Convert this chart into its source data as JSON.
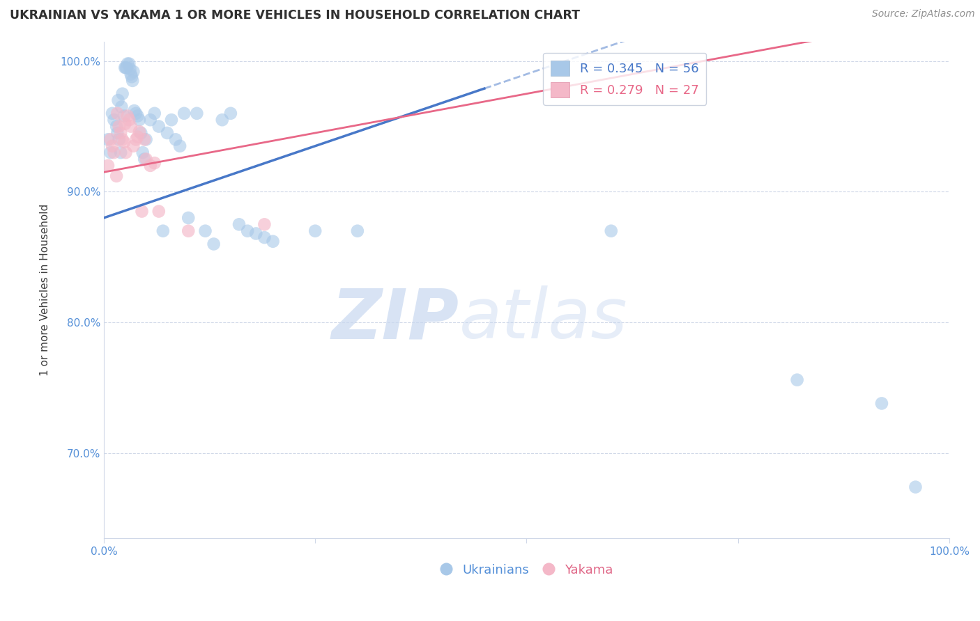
{
  "title": "UKRAINIAN VS YAKAMA 1 OR MORE VEHICLES IN HOUSEHOLD CORRELATION CHART",
  "source": "Source: ZipAtlas.com",
  "ylabel": "1 or more Vehicles in Household",
  "xlim": [
    0.0,
    1.0
  ],
  "ylim": [
    0.635,
    1.015
  ],
  "x_ticks": [
    0.0,
    0.25,
    0.5,
    0.75,
    1.0
  ],
  "x_tick_labels": [
    "0.0%",
    "",
    "",
    "",
    "100.0%"
  ],
  "y_ticks": [
    0.7,
    0.8,
    0.9,
    1.0
  ],
  "y_tick_labels": [
    "70.0%",
    "80.0%",
    "90.0%",
    "100.0%"
  ],
  "legend_blue_label": "R = 0.345   N = 56",
  "legend_pink_label": "R = 0.279   N = 27",
  "legend_group1": "Ukrainians",
  "legend_group2": "Yakama",
  "blue_color": "#a8c8e8",
  "pink_color": "#f4b8c8",
  "blue_line_color": "#4878c8",
  "pink_line_color": "#e86888",
  "watermark_zip": "ZIP",
  "watermark_atlas": "atlas",
  "blue_x": [
    0.005,
    0.008,
    0.01,
    0.012,
    0.015,
    0.016,
    0.017,
    0.018,
    0.02,
    0.021,
    0.022,
    0.024,
    0.025,
    0.026,
    0.027,
    0.028,
    0.03,
    0.031,
    0.032,
    0.033,
    0.034,
    0.035,
    0.036,
    0.038,
    0.04,
    0.042,
    0.044,
    0.046,
    0.048,
    0.05,
    0.055,
    0.06,
    0.065,
    0.07,
    0.075,
    0.08,
    0.085,
    0.09,
    0.095,
    0.1,
    0.11,
    0.12,
    0.13,
    0.14,
    0.15,
    0.16,
    0.17,
    0.18,
    0.19,
    0.2,
    0.25,
    0.3,
    0.6,
    0.82,
    0.92,
    0.96
  ],
  "blue_y": [
    0.94,
    0.93,
    0.96,
    0.955,
    0.95,
    0.945,
    0.97,
    0.94,
    0.93,
    0.965,
    0.975,
    0.958,
    0.995,
    0.995,
    0.995,
    0.998,
    0.998,
    0.994,
    0.99,
    0.988,
    0.985,
    0.992,
    0.962,
    0.96,
    0.958,
    0.955,
    0.945,
    0.93,
    0.925,
    0.94,
    0.955,
    0.96,
    0.95,
    0.87,
    0.945,
    0.955,
    0.94,
    0.935,
    0.96,
    0.88,
    0.96,
    0.87,
    0.86,
    0.955,
    0.96,
    0.875,
    0.87,
    0.868,
    0.865,
    0.862,
    0.87,
    0.87,
    0.87,
    0.756,
    0.738,
    0.674
  ],
  "pink_x": [
    0.005,
    0.008,
    0.01,
    0.012,
    0.015,
    0.016,
    0.018,
    0.02,
    0.022,
    0.024,
    0.025,
    0.026,
    0.028,
    0.03,
    0.032,
    0.035,
    0.038,
    0.04,
    0.042,
    0.045,
    0.048,
    0.05,
    0.055,
    0.06,
    0.065,
    0.1,
    0.19
  ],
  "pink_y": [
    0.92,
    0.94,
    0.935,
    0.93,
    0.912,
    0.96,
    0.95,
    0.945,
    0.94,
    0.938,
    0.952,
    0.93,
    0.958,
    0.955,
    0.95,
    0.935,
    0.94,
    0.942,
    0.946,
    0.885,
    0.94,
    0.925,
    0.92,
    0.922,
    0.885,
    0.87,
    0.875
  ],
  "blue_slope": 0.22,
  "blue_intercept": 0.88,
  "pink_slope": 0.12,
  "pink_intercept": 0.915
}
